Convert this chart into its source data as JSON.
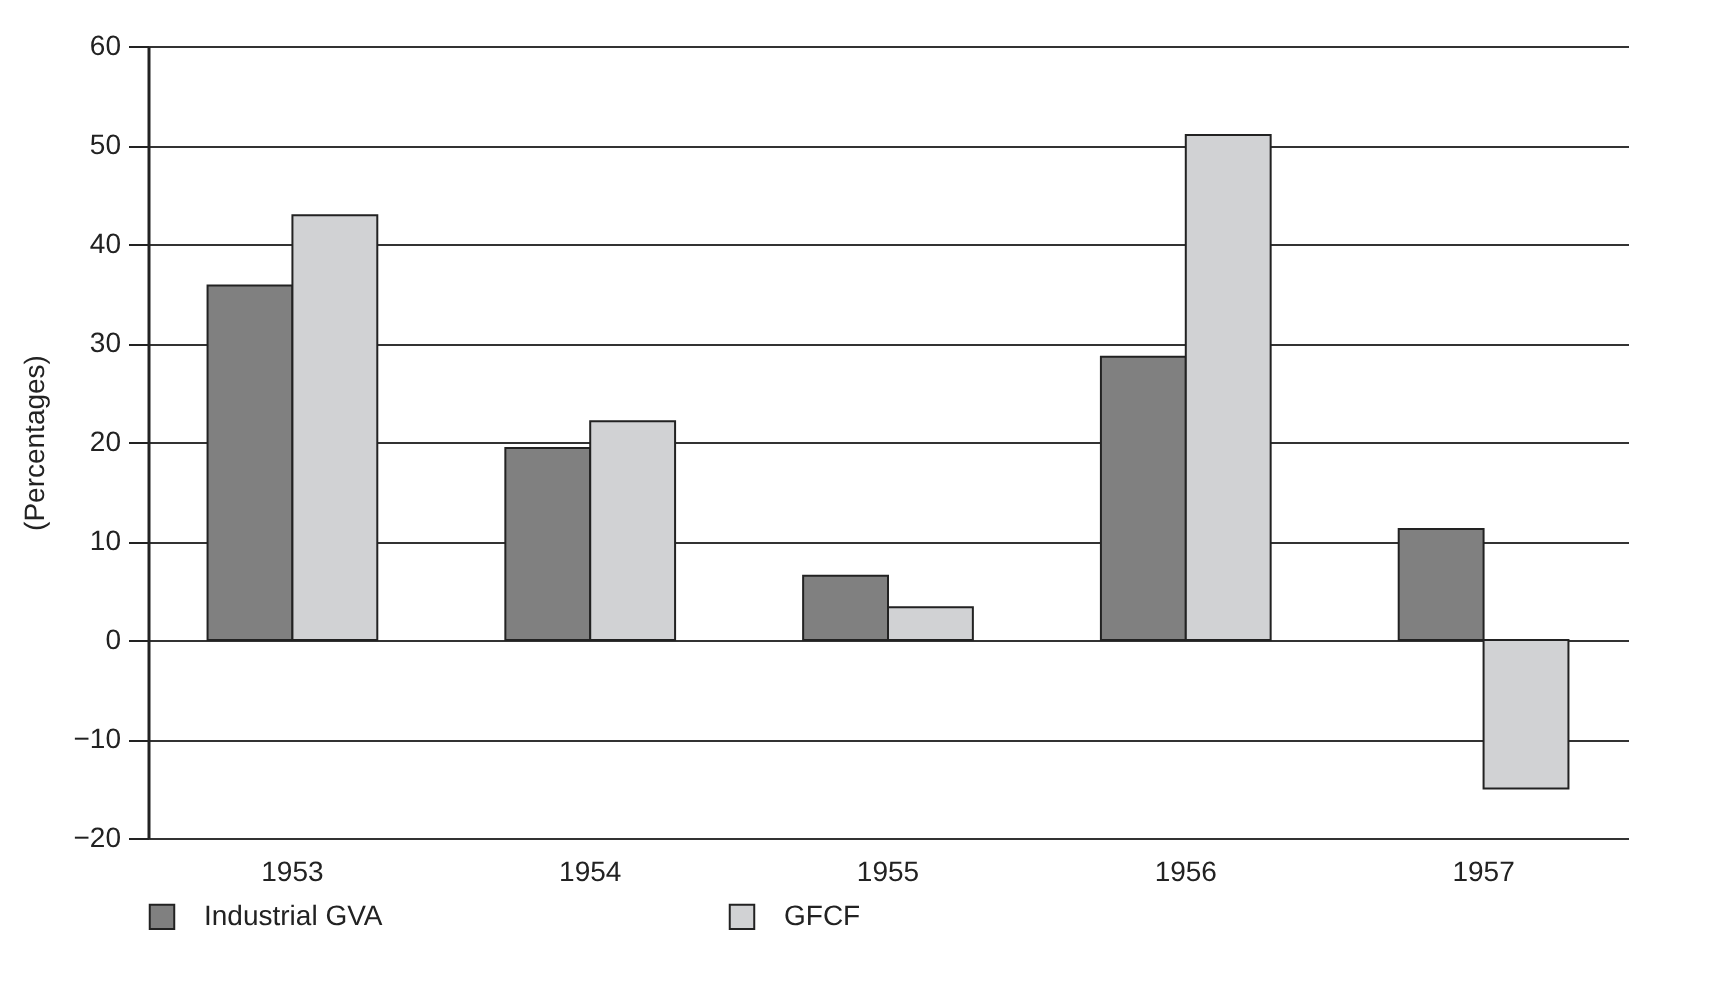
{
  "chart_data": {
    "type": "bar",
    "ylabel": "(Percentages)",
    "categories": [
      "1953",
      "1954",
      "1955",
      "1956",
      "1957"
    ],
    "series": [
      {
        "name": "Industrial GVA",
        "color": "#808080",
        "values": [
          35.8,
          19.4,
          6.5,
          28.6,
          11.2
        ]
      },
      {
        "name": "GFCF",
        "color": "#d1d2d4",
        "values": [
          42.9,
          22.1,
          3.3,
          51.0,
          -15.0
        ]
      }
    ],
    "ylim": [
      -20,
      60
    ],
    "yticks": [
      -20,
      -10,
      0,
      10,
      20,
      30,
      40,
      50,
      60
    ],
    "grid": "y",
    "legend": "bottom"
  }
}
